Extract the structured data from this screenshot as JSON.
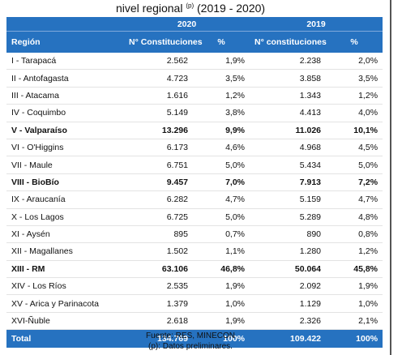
{
  "title": {
    "text": "nivel regional",
    "sup": "(p)",
    "period": "(2019 - 2020)"
  },
  "table": {
    "years": [
      "2020",
      "2019"
    ],
    "header": [
      "Región",
      "N° Constituciones",
      "%",
      "N° constituciones",
      "%"
    ],
    "rows": [
      [
        "I - Tarapacá",
        "2.562",
        "1,9%",
        "2.238",
        "2,0%"
      ],
      [
        "II - Antofagasta",
        "4.723",
        "3,5%",
        "3.858",
        "3,5%"
      ],
      [
        "III - Atacama",
        "1.616",
        "1,2%",
        "1.343",
        "1,2%"
      ],
      [
        "IV - Coquimbo",
        "5.149",
        "3,8%",
        "4.413",
        "4,0%"
      ],
      [
        "V - Valparaíso",
        "13.296",
        "9,9%",
        "11.026",
        "10,1%"
      ],
      [
        "VI - O'Higgins",
        "6.173",
        "4,6%",
        "4.968",
        "4,5%"
      ],
      [
        "VII - Maule",
        "6.751",
        "5,0%",
        "5.434",
        "5,0%"
      ],
      [
        "VIII - BioBío",
        "9.457",
        "7,0%",
        "7.913",
        "7,2%"
      ],
      [
        "IX - Araucanía",
        "6.282",
        "4,7%",
        "5.159",
        "4,7%"
      ],
      [
        "X - Los Lagos",
        "6.725",
        "5,0%",
        "5.289",
        "4,8%"
      ],
      [
        "XI - Aysén",
        "895",
        "0,7%",
        "890",
        "0,8%"
      ],
      [
        "XII - Magallanes",
        "1.502",
        "1,1%",
        "1.280",
        "1,2%"
      ],
      [
        "XIII - RM",
        "63.106",
        "46,8%",
        "50.064",
        "45,8%"
      ],
      [
        "XIV - Los Ríos",
        "2.535",
        "1,9%",
        "2.092",
        "1,9%"
      ],
      [
        "XV - Arica y Parinacota",
        "1.379",
        "1,0%",
        "1.129",
        "1,0%"
      ],
      [
        "XVI-Ñuble",
        "2.618",
        "1,9%",
        "2.326",
        "2,1%"
      ]
    ],
    "bold_rows": [
      4,
      7,
      12
    ],
    "total": [
      "Total",
      "134.769",
      "100%",
      "109.422",
      "100%"
    ]
  },
  "footer": {
    "source": "Fuente: RES, MINECON",
    "note": "(p): Datos preliminares."
  }
}
